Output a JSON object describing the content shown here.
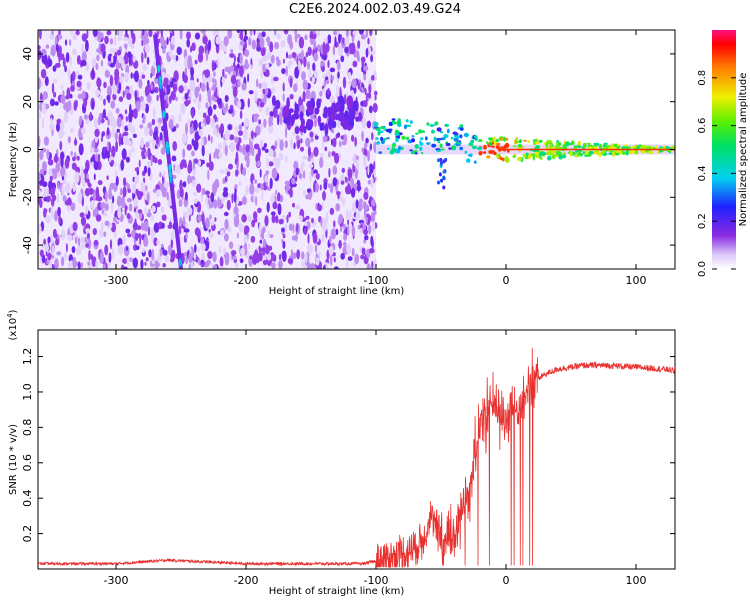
{
  "title": "C2E6.2024.002.03.49.G24",
  "chart_data": [
    {
      "type": "heatmap",
      "xlabel": "Height of straight line (km)",
      "ylabel": "Frequency (Hz)",
      "xlim": [
        -360,
        130
      ],
      "ylim": [
        -50,
        50
      ],
      "xticks": [
        -300,
        -200,
        -100,
        0,
        100
      ],
      "yticks": [
        -40,
        -20,
        0,
        20,
        40
      ],
      "grid": false,
      "colorbar": {
        "label": "Normalized spectral amplitude",
        "range": [
          0,
          1
        ],
        "ticks": [
          0.0,
          0.2,
          0.4,
          0.6,
          0.8
        ],
        "colormap": "rainbow (white → violet → blue → cyan → green → yellow → red → magenta)"
      },
      "features": [
        {
          "name": "noise region",
          "x_range": [
            -360,
            -100
          ],
          "amplitude": 0.12
        },
        {
          "name": "diagonal streak",
          "x": [
            -270,
            -250
          ],
          "y": [
            48,
            -50
          ],
          "amplitude": 0.35
        },
        {
          "name": "signal band",
          "x_range": [
            -100,
            130
          ],
          "center_freq": 0,
          "peak_amplitude": 0.9
        }
      ]
    },
    {
      "type": "line",
      "xlabel": "Height of straight line (km)",
      "ylabel": "SNR (10 * v/v)",
      "y_scale_label": "(x10",
      "y_scale_exp": "4",
      "y_scale_close": ")",
      "xlim": [
        -360,
        130
      ],
      "ylim": [
        0,
        1.35
      ],
      "xticks": [
        -300,
        -200,
        -100,
        0,
        100
      ],
      "yticks": [
        0.2,
        0.4,
        0.6,
        0.8,
        1.0,
        1.2
      ],
      "grid": false,
      "color": "#e8302e",
      "series": [
        {
          "x": [
            -360,
            -300,
            -260,
            -200,
            -150,
            -110,
            -90,
            -75,
            -65,
            -58,
            -52,
            -45,
            -40,
            -35,
            -30,
            -25,
            -20,
            -15,
            -12,
            -8,
            -5,
            0,
            10,
            20,
            30,
            40,
            60,
            80,
            100,
            120,
            130
          ],
          "values": [
            0.03,
            0.03,
            0.05,
            0.03,
            0.03,
            0.03,
            0.06,
            0.1,
            0.15,
            0.3,
            0.2,
            0.15,
            0.2,
            0.3,
            0.4,
            0.6,
            0.8,
            0.9,
            0.95,
            0.9,
            0.85,
            0.85,
            0.9,
            1.05,
            1.1,
            1.13,
            1.15,
            1.15,
            1.14,
            1.13,
            1.12
          ]
        }
      ]
    }
  ]
}
